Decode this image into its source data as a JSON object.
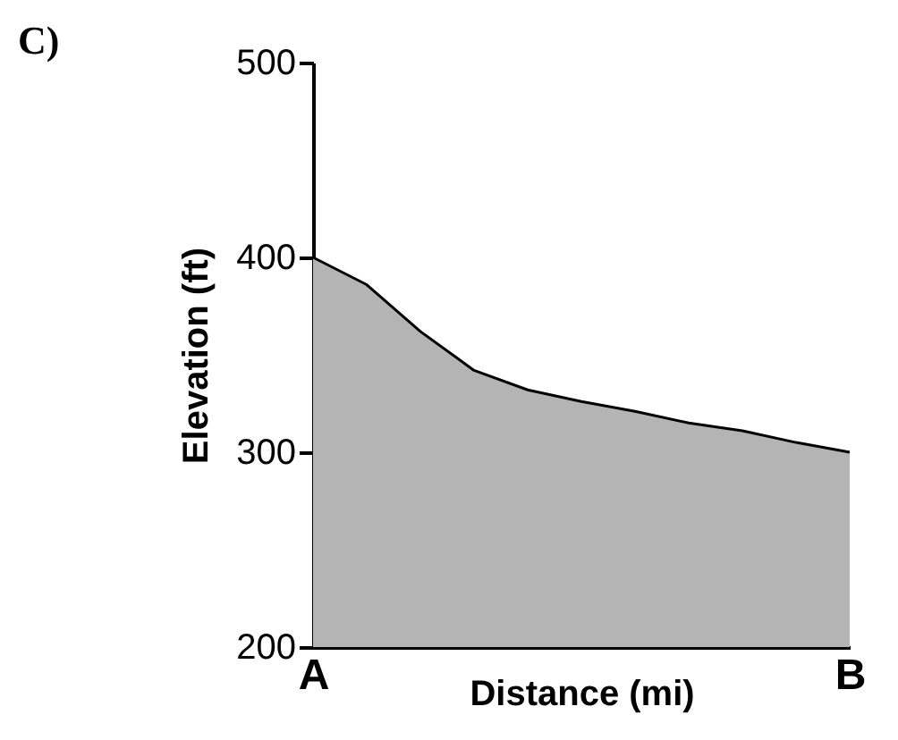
{
  "chart_data": {
    "type": "area",
    "title": "C)",
    "xlabel": "Distance (mi)",
    "ylabel": "Elevation (ft)",
    "categories": [
      "A",
      null,
      null,
      null,
      null,
      null,
      null,
      null,
      null,
      null,
      "B"
    ],
    "series": [
      {
        "color": "#b4b4b4",
        "values": [
          400,
          386,
          362,
          342,
          332,
          326,
          321,
          315,
          311,
          305,
          300
        ]
      }
    ],
    "ylim": [
      200,
      500
    ],
    "yticks": [
      200,
      300,
      400,
      500
    ],
    "grid": false
  }
}
